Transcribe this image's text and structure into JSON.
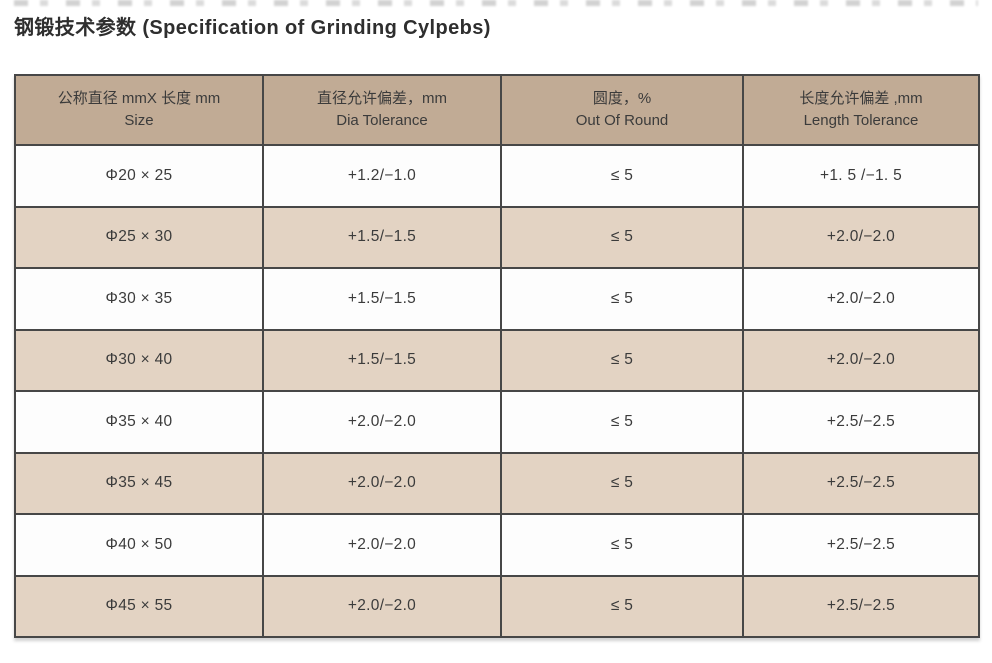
{
  "page_title": "钢锻技术参数 (Specification of Grinding Cylpebs)",
  "colors": {
    "header_bg": "#c1ab95",
    "alt_row_bg": "#e3d3c3",
    "white_row_bg": "#fdfdfd",
    "border_color": "#474747",
    "text_color": "#3b3b3b",
    "title_color": "#2e2e2e"
  },
  "table": {
    "headers": [
      {
        "zh": "公称直径 mmX 长度 mm",
        "en": "Size"
      },
      {
        "zh": "直径允许偏差，mm",
        "en": "Dia Tolerance"
      },
      {
        "zh": "圆度，%",
        "en": "Out Of Round"
      },
      {
        "zh": "长度允许偏差 ,mm",
        "en": "Length Tolerance"
      }
    ],
    "rows": [
      {
        "cells": [
          "Φ20 × 25",
          "+1.2/−1.0",
          "≤ 5",
          "+1. 5 /−1. 5"
        ]
      },
      {
        "cells": [
          "Φ25 × 30",
          "+1.5/−1.5",
          "≤ 5",
          "+2.0/−2.0"
        ]
      },
      {
        "cells": [
          "Φ30 × 35",
          "+1.5/−1.5",
          "≤ 5",
          "+2.0/−2.0"
        ]
      },
      {
        "cells": [
          "Φ30 × 40",
          "+1.5/−1.5",
          "≤ 5",
          "+2.0/−2.0"
        ]
      },
      {
        "cells": [
          "Φ35 × 40",
          "+2.0/−2.0",
          "≤ 5",
          "+2.5/−2.5"
        ]
      },
      {
        "cells": [
          "Φ35 × 45",
          "+2.0/−2.0",
          "≤ 5",
          "+2.5/−2.5"
        ]
      },
      {
        "cells": [
          "Φ40 × 50",
          "+2.0/−2.0",
          "≤ 5",
          "+2.5/−2.5"
        ]
      },
      {
        "cells": [
          "Φ45 × 55",
          "+2.0/−2.0",
          "≤ 5",
          "+2.5/−2.5"
        ]
      }
    ]
  }
}
